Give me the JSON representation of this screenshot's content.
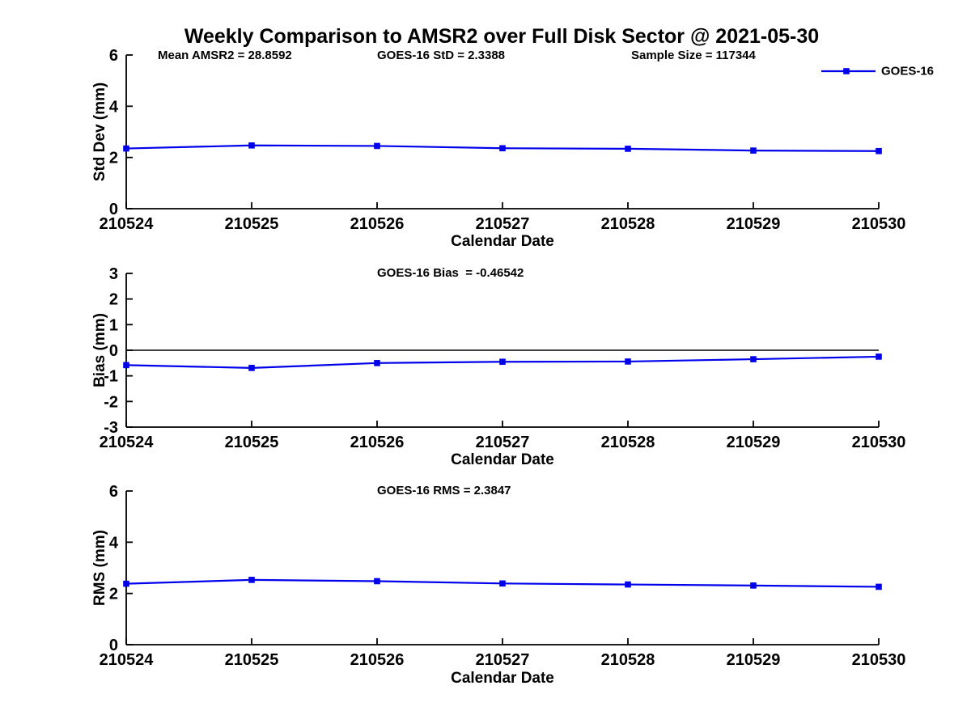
{
  "title": "Weekly Comparison to AMSR2 over Full Disk Sector @ 2021-05-30",
  "colors": {
    "line": "#0000EB",
    "axis": "#000000",
    "text": "#000000",
    "background": "#FFFFFF",
    "zero_line": "#000000"
  },
  "legend": {
    "label": "GOES-16",
    "position": "top-right-outside"
  },
  "chart_data": [
    {
      "type": "line",
      "name": "std-dev-subplot",
      "annotations": [
        "Mean AMSR2 = 28.8592",
        "GOES-16 StD = 2.3388",
        "Sample Size = 117344"
      ],
      "x": [
        "210524",
        "210525",
        "210526",
        "210527",
        "210528",
        "210529",
        "210530"
      ],
      "series": [
        {
          "name": "GOES-16",
          "marker": "square",
          "values": [
            2.35,
            2.47,
            2.45,
            2.36,
            2.34,
            2.27,
            2.25
          ]
        }
      ],
      "xlabel": "Calendar Date",
      "ylabel": "Std Dev (mm)",
      "ylim": [
        0,
        6
      ],
      "yticks": [
        0,
        2,
        4,
        6
      ],
      "zero_line": false,
      "grid": false
    },
    {
      "type": "line",
      "name": "bias-subplot",
      "annotations": [
        "GOES-16 Bias  = -0.46542"
      ],
      "x": [
        "210524",
        "210525",
        "210526",
        "210527",
        "210528",
        "210529",
        "210530"
      ],
      "series": [
        {
          "name": "GOES-16",
          "marker": "square",
          "values": [
            -0.58,
            -0.69,
            -0.5,
            -0.45,
            -0.44,
            -0.35,
            -0.25
          ]
        }
      ],
      "xlabel": "Calendar Date",
      "ylabel": "Bias (mm)",
      "ylim": [
        -3,
        3
      ],
      "yticks": [
        -3,
        -2,
        -1,
        0,
        1,
        2,
        3
      ],
      "zero_line": true,
      "grid": false
    },
    {
      "type": "line",
      "name": "rms-subplot",
      "annotations": [
        "GOES-16 RMS = 2.3847"
      ],
      "x": [
        "210524",
        "210525",
        "210526",
        "210527",
        "210528",
        "210529",
        "210530"
      ],
      "series": [
        {
          "name": "GOES-16",
          "marker": "square",
          "values": [
            2.38,
            2.53,
            2.48,
            2.39,
            2.35,
            2.31,
            2.26
          ]
        }
      ],
      "xlabel": "Calendar Date",
      "ylabel": "RMS (mm)",
      "ylim": [
        0,
        6
      ],
      "yticks": [
        0,
        2,
        4,
        6
      ],
      "zero_line": false,
      "grid": false
    }
  ]
}
